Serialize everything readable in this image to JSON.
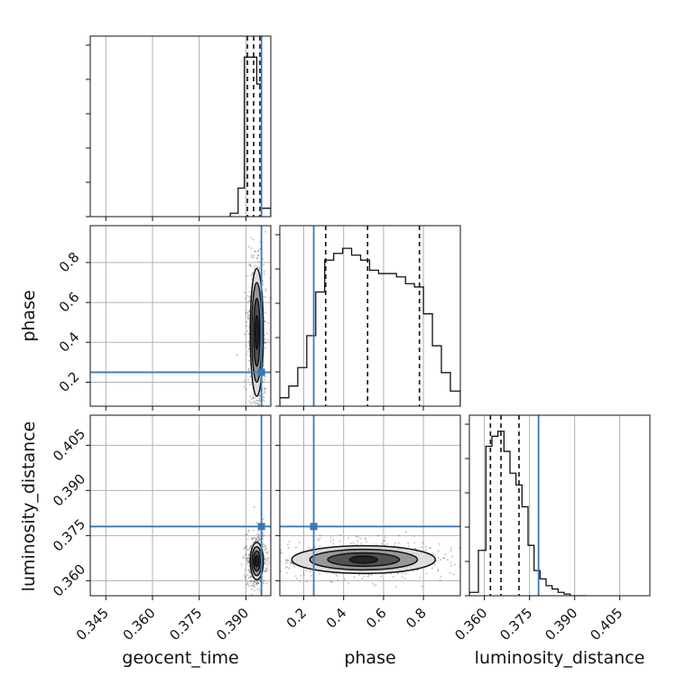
{
  "chart_data": {
    "type": "corner",
    "parameters": [
      "geocent_time",
      "phase",
      "luminosity_distance"
    ],
    "truths": {
      "geocent_time": 0.395,
      "phase": 0.25,
      "luminosity_distance": 0.378
    },
    "truth_color": "#3b78b4",
    "ranges": {
      "geocent_time": [
        0.34,
        0.398
      ],
      "phase": [
        0.08,
        0.985
      ],
      "luminosity_distance": [
        0.355,
        0.415
      ]
    },
    "ticks": {
      "geocent_time": [
        0.345,
        0.36,
        0.375,
        0.39
      ],
      "phase": [
        0.2,
        0.4,
        0.6,
        0.8
      ],
      "luminosity_distance": [
        0.36,
        0.375,
        0.39,
        0.405
      ]
    },
    "tick_labels": {
      "geocent_time": [
        "0.345",
        "0.360",
        "0.375",
        "0.390"
      ],
      "phase": [
        "0.2",
        "0.4",
        "0.6",
        "0.8"
      ],
      "luminosity_distance": [
        "0.360",
        "0.375",
        "0.390",
        "0.405"
      ]
    },
    "quantiles": {
      "geocent_time": [
        0.3905,
        0.3925,
        0.3945
      ],
      "phase": [
        0.31,
        0.52,
        0.78
      ],
      "luminosity_distance": [
        0.362,
        0.3655,
        0.3715
      ]
    },
    "histograms": {
      "geocent_time": {
        "edges": [
          0.385,
          0.3875,
          0.3895,
          0.3915,
          0.3935,
          0.395,
          0.398
        ],
        "counts": [
          0.02,
          0.17,
          0.95,
          0.95,
          0.79,
          0.05
        ]
      },
      "phase": {
        "edges": [
          0.08,
          0.125,
          0.17,
          0.215,
          0.26,
          0.305,
          0.35,
          0.395,
          0.44,
          0.485,
          0.53,
          0.575,
          0.62,
          0.665,
          0.71,
          0.755,
          0.8,
          0.845,
          0.89,
          0.935,
          0.985
        ],
        "counts": [
          0.05,
          0.12,
          0.23,
          0.42,
          0.68,
          0.87,
          0.91,
          0.94,
          0.9,
          0.87,
          0.81,
          0.79,
          0.79,
          0.77,
          0.73,
          0.71,
          0.55,
          0.36,
          0.2,
          0.09
        ]
      },
      "luminosity_distance": {
        "edges": [
          0.355,
          0.358,
          0.3605,
          0.3625,
          0.3645,
          0.3665,
          0.3685,
          0.3705,
          0.3725,
          0.3745,
          0.3765,
          0.3785,
          0.3805,
          0.3825,
          0.3845,
          0.3865,
          0.3885,
          0.394
        ],
        "counts": [
          0.02,
          0.27,
          0.89,
          0.95,
          0.98,
          0.86,
          0.73,
          0.66,
          0.53,
          0.3,
          0.15,
          0.1,
          0.06,
          0.04,
          0.02,
          0.01,
          0.0
        ]
      }
    },
    "contours_2d": [
      {
        "x": "geocent_time",
        "y": "phase",
        "center": [
          0.3935,
          0.45
        ],
        "levels": [
          {
            "sx": 0.0005,
            "sy": 0.085,
            "shade": 0.05
          },
          {
            "sx": 0.001,
            "sy": 0.17,
            "shade": 0.25
          },
          {
            "sx": 0.0016,
            "sy": 0.25,
            "shade": 0.55
          },
          {
            "sx": 0.0021,
            "sy": 0.32,
            "shade": 0.85
          }
        ]
      },
      {
        "x": "geocent_time",
        "y": "luminosity_distance",
        "center": [
          0.3935,
          0.3665
        ],
        "levels": [
          {
            "sx": 0.0006,
            "sy": 0.0018,
            "shade": 0.05
          },
          {
            "sx": 0.0011,
            "sy": 0.0033,
            "shade": 0.25
          },
          {
            "sx": 0.0016,
            "sy": 0.0048,
            "shade": 0.55
          },
          {
            "sx": 0.0021,
            "sy": 0.0062,
            "shade": 0.85
          }
        ]
      },
      {
        "x": "phase",
        "y": "luminosity_distance",
        "center": [
          0.5,
          0.367
        ],
        "levels": [
          {
            "sx": 0.07,
            "sy": 0.0012,
            "shade": 0.05
          },
          {
            "sx": 0.18,
            "sy": 0.0022,
            "shade": 0.25
          },
          {
            "sx": 0.27,
            "sy": 0.0034,
            "shade": 0.55
          },
          {
            "sx": 0.36,
            "sy": 0.0046,
            "shade": 0.85
          }
        ]
      }
    ]
  }
}
